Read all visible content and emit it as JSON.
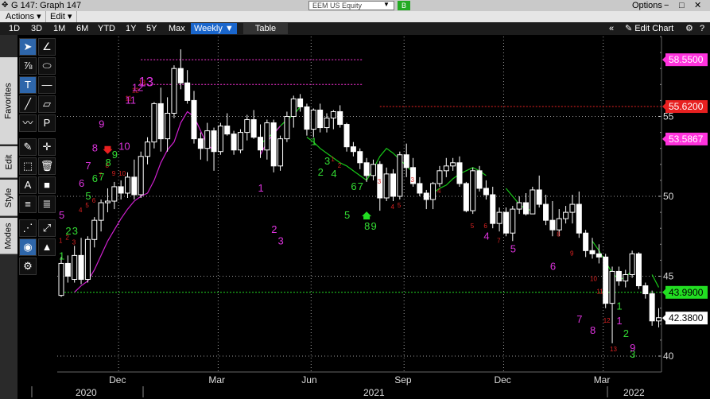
{
  "window": {
    "title": "G 147: Graph 147",
    "ticker": "EEM US Equity",
    "go": "B",
    "options": "Options",
    "controls": [
      "−",
      "□",
      "✕"
    ]
  },
  "menu": {
    "actions": "Actions ▾",
    "edit": "Edit ▾"
  },
  "toolbar": {
    "periods": [
      "1D",
      "3D",
      "1M",
      "6M",
      "YTD",
      "1Y",
      "5Y",
      "Max"
    ],
    "frequency": "Weekly ▼",
    "table": "Table",
    "edit_chart": "✎ Edit Chart",
    "collapse": "«",
    "window_controls": [
      "⚙",
      "?"
    ]
  },
  "side_tabs": [
    "Favorites",
    "Edit",
    "Style",
    "Modes"
  ],
  "tool_icons": [
    "arrow-pointer-icon",
    "draw-line-icon",
    "fibonacci-icon",
    "ellipse-icon",
    "text-box-icon",
    "horizontal-line-icon",
    "trend-line-icon",
    "rectangle-icon",
    "pen-icon",
    "price-label-icon",
    "brush-icon",
    "crosshair-icon",
    "select-region-icon",
    "trash-icon",
    "text-icon",
    "color-swatch-icon",
    "line-style-icon",
    "line-width-icon",
    "ruler-icon",
    "measure-icon",
    "magnet-icon",
    "shapes-icon",
    "settings-icon"
  ],
  "colors": {
    "background": "#000000",
    "up_candle": "#ffffff",
    "down_candle": "#ffffff",
    "ma_green": "#18c818",
    "ma_magenta": "#d020d0",
    "count_green": "#33dd33",
    "count_magenta": "#dd33dd",
    "count_red": "#dd2222",
    "grid": "#9a9a9a",
    "label_magenta": "#ff33dd",
    "label_red": "#e82020",
    "label_green": "#22dd22"
  },
  "chart_data": {
    "type": "candlestick",
    "frequency": "Weekly",
    "ylim": [
      39.5,
      60.5
    ],
    "yticks": [
      40,
      45,
      50,
      55
    ],
    "xticks": [
      "Dec",
      "Mar",
      "Jun",
      "Sep",
      "Dec",
      "Mar"
    ],
    "years": [
      "2020",
      "2021",
      "2022"
    ],
    "price_labels": [
      {
        "value": 58.55,
        "text": "58.5500",
        "color": "magenta"
      },
      {
        "value": 55.62,
        "text": "55.6200",
        "color": "red"
      },
      {
        "value": 53.5867,
        "text": "53.5867",
        "color": "magenta"
      },
      {
        "value": 43.99,
        "text": "43.9900",
        "color": "green"
      },
      {
        "value": 42.38,
        "text": "42.3800",
        "color": "white"
      }
    ],
    "reference_lines": [
      {
        "value": 58.55,
        "color": "magenta",
        "start_week": 12
      },
      {
        "value": 57.0,
        "color": "magenta",
        "start_week": 12
      },
      {
        "value": 55.62,
        "color": "red",
        "start_week": 48
      },
      {
        "value": 43.99,
        "color": "green",
        "start_week": 0
      }
    ],
    "candles": [
      [
        43.8,
        46.2,
        43.7,
        45.8
      ],
      [
        45.8,
        46.3,
        44.6,
        45.0
      ],
      [
        44.8,
        46.9,
        44.6,
        46.3
      ],
      [
        46.3,
        47.4,
        44.5,
        44.8
      ],
      [
        44.8,
        47.5,
        44.6,
        47.3
      ],
      [
        47.3,
        48.7,
        46.8,
        48.5
      ],
      [
        48.5,
        49.8,
        47.8,
        49.6
      ],
      [
        49.6,
        50.5,
        49.0,
        49.7
      ],
      [
        49.7,
        50.9,
        49.2,
        50.6
      ],
      [
        50.6,
        51.0,
        49.8,
        50.2
      ],
      [
        50.2,
        51.5,
        49.9,
        51.2
      ],
      [
        51.2,
        52.3,
        49.8,
        50.1
      ],
      [
        50.1,
        52.8,
        49.9,
        52.5
      ],
      [
        52.5,
        53.7,
        52.0,
        53.4
      ],
      [
        53.4,
        55.9,
        53.0,
        55.8
      ],
      [
        55.8,
        56.8,
        52.8,
        53.6
      ],
      [
        53.6,
        56.2,
        52.8,
        55.2
      ],
      [
        55.2,
        58.2,
        54.9,
        58.0
      ],
      [
        58.0,
        59.2,
        56.7,
        57.1
      ],
      [
        57.1,
        57.9,
        55.8,
        56.0
      ],
      [
        56.0,
        56.6,
        53.3,
        53.6
      ],
      [
        53.6,
        54.0,
        52.3,
        53.0
      ],
      [
        53.0,
        54.6,
        52.2,
        54.1
      ],
      [
        54.1,
        54.3,
        51.6,
        52.8
      ],
      [
        52.8,
        54.6,
        52.6,
        54.4
      ],
      [
        54.4,
        55.2,
        53.8,
        53.9
      ],
      [
        53.9,
        54.1,
        52.6,
        52.9
      ],
      [
        52.9,
        54.2,
        52.7,
        54.0
      ],
      [
        54.0,
        55.1,
        53.5,
        54.8
      ],
      [
        54.8,
        55.4,
        53.6,
        53.7
      ],
      [
        53.7,
        54.5,
        52.4,
        52.9
      ],
      [
        52.9,
        54.8,
        52.3,
        54.6
      ],
      [
        54.6,
        54.8,
        51.5,
        51.9
      ],
      [
        51.9,
        53.8,
        51.6,
        53.6
      ],
      [
        53.6,
        55.3,
        53.4,
        55.0
      ],
      [
        55.0,
        56.3,
        54.3,
        56.1
      ],
      [
        56.1,
        56.4,
        55.3,
        55.6
      ],
      [
        55.6,
        55.8,
        53.8,
        54.2
      ],
      [
        54.2,
        55.5,
        53.7,
        55.4
      ],
      [
        55.4,
        55.8,
        54.0,
        54.3
      ],
      [
        54.3,
        55.2,
        54.0,
        54.9
      ],
      [
        54.9,
        55.4,
        54.2,
        55.3
      ],
      [
        55.3,
        55.7,
        54.3,
        54.5
      ],
      [
        54.5,
        54.6,
        52.8,
        53.1
      ],
      [
        53.1,
        53.4,
        52.5,
        52.8
      ],
      [
        52.8,
        53.0,
        51.7,
        52.1
      ],
      [
        52.1,
        52.4,
        50.9,
        51.3
      ],
      [
        51.3,
        52.3,
        51.0,
        52.0
      ],
      [
        52.0,
        52.2,
        49.1,
        49.9
      ],
      [
        49.9,
        51.8,
        49.7,
        51.4
      ],
      [
        51.4,
        51.7,
        49.7,
        50.0
      ],
      [
        50.0,
        52.8,
        49.8,
        52.6
      ],
      [
        52.6,
        53.3,
        51.2,
        51.8
      ],
      [
        51.8,
        52.4,
        50.6,
        50.8
      ],
      [
        50.8,
        51.2,
        50.0,
        50.2
      ],
      [
        50.2,
        50.4,
        49.2,
        49.8
      ],
      [
        49.8,
        50.9,
        49.2,
        50.8
      ],
      [
        50.8,
        51.9,
        50.6,
        51.6
      ],
      [
        51.6,
        52.4,
        51.2,
        51.9
      ],
      [
        51.9,
        52.4,
        51.6,
        52.1
      ],
      [
        52.1,
        52.5,
        50.6,
        50.8
      ],
      [
        50.8,
        50.9,
        49.0,
        49.1
      ],
      [
        49.1,
        51.8,
        48.9,
        51.6
      ],
      [
        51.6,
        51.9,
        50.3,
        50.5
      ],
      [
        50.5,
        51.0,
        49.8,
        50.1
      ],
      [
        50.1,
        50.6,
        48.0,
        48.3
      ],
      [
        48.3,
        49.3,
        47.8,
        49.0
      ],
      [
        49.0,
        49.3,
        47.5,
        47.7
      ],
      [
        47.7,
        49.4,
        47.2,
        49.2
      ],
      [
        49.2,
        50.0,
        48.9,
        49.6
      ],
      [
        49.6,
        50.2,
        48.8,
        48.9
      ],
      [
        48.9,
        50.6,
        48.9,
        50.4
      ],
      [
        50.4,
        51.3,
        49.3,
        49.5
      ],
      [
        49.5,
        50.1,
        48.2,
        48.5
      ],
      [
        48.5,
        49.7,
        47.5,
        47.9
      ],
      [
        47.9,
        49.2,
        47.5,
        48.6
      ],
      [
        48.6,
        49.4,
        48.3,
        49.0
      ],
      [
        49.0,
        50.1,
        48.3,
        49.5
      ],
      [
        49.5,
        50.3,
        47.4,
        47.7
      ],
      [
        47.7,
        47.9,
        46.2,
        46.6
      ],
      [
        46.6,
        47.4,
        46.1,
        46.4
      ],
      [
        46.4,
        47.0,
        45.8,
        46.2
      ],
      [
        46.2,
        46.4,
        43.0,
        43.3
      ],
      [
        43.3,
        45.6,
        40.8,
        45.3
      ],
      [
        45.3,
        45.6,
        44.4,
        44.7
      ],
      [
        44.7,
        45.4,
        44.3,
        45.1
      ],
      [
        45.1,
        46.6,
        44.9,
        46.4
      ],
      [
        46.4,
        46.5,
        44.2,
        44.4
      ],
      [
        44.4,
        44.6,
        43.6,
        43.9
      ],
      [
        43.9,
        44.1,
        41.9,
        42.2
      ],
      [
        42.2,
        43.0,
        41.8,
        42.4
      ]
    ],
    "ma_green_segments": [
      {
        "start": 30,
        "values": [
          53.3,
          53.6,
          54.0,
          54.4,
          54.8,
          55.1,
          55.6
        ]
      },
      {
        "start": 37,
        "values": [
          53.7,
          53.4,
          53.0,
          52.7,
          52.4,
          52.1,
          51.9,
          51.6,
          51.3,
          51.0,
          51.7,
          52.5,
          53.0,
          52.7,
          52.3,
          51.9,
          51.5
        ]
      },
      {
        "start": 56,
        "values": [
          50.2,
          50.5,
          50.7,
          51.1,
          51.4,
          51.6,
          51.8,
          51.6,
          51.3
        ]
      },
      {
        "start": 67,
        "values": [
          50.5,
          50.0,
          49.5,
          49.2,
          49.1
        ]
      },
      {
        "start": 80,
        "values": [
          47.2,
          46.6,
          45.9,
          45.2,
          44.8,
          44.9,
          45.4
        ]
      },
      {
        "start": 89,
        "values": [
          45.1,
          44.3
        ]
      }
    ],
    "ma_magenta_segments": [
      {
        "start": 2,
        "values": [
          44.0,
          44.4,
          44.7,
          45.4,
          46.3,
          47.2,
          47.9,
          48.6,
          49.2,
          49.7,
          50.0,
          50.2,
          51.0,
          52.1,
          52.9,
          53.4,
          54.6,
          55.3,
          55.0,
          54.1,
          53.2,
          52.9
        ]
      },
      {
        "start": 30,
        "values": [
          52.6,
          53.4,
          53.9,
          54.4
        ]
      }
    ],
    "counts_green": [
      {
        "w": 0,
        "v": 46.05,
        "t": "1"
      },
      {
        "w": 1,
        "v": 47.6,
        "t": "2"
      },
      {
        "w": 2,
        "v": 47.6,
        "t": "3"
      },
      {
        "w": 4,
        "v": 49.8,
        "t": "5"
      },
      {
        "w": 5,
        "v": 50.9,
        "t": "6"
      },
      {
        "w": 6,
        "v": 51.0,
        "t": "7"
      },
      {
        "w": 7,
        "v": 51.9,
        "t": "8"
      },
      {
        "w": 8,
        "v": 52.4,
        "t": "9"
      },
      {
        "w": 38,
        "v": 53.2,
        "t": "1"
      },
      {
        "w": 39,
        "v": 51.3,
        "t": "2"
      },
      {
        "w": 40,
        "v": 52.0,
        "t": "3"
      },
      {
        "w": 41,
        "v": 51.2,
        "t": "4"
      },
      {
        "w": 43,
        "v": 48.6,
        "t": "5"
      },
      {
        "w": 44,
        "v": 50.4,
        "t": "6"
      },
      {
        "w": 45,
        "v": 50.4,
        "t": "7"
      },
      {
        "w": 46,
        "v": 47.9,
        "t": "8"
      },
      {
        "w": 47,
        "v": 47.9,
        "t": "9"
      },
      {
        "w": 84,
        "v": 42.9,
        "t": "1"
      },
      {
        "w": 85,
        "v": 41.2,
        "t": "2"
      },
      {
        "w": 86,
        "v": 39.9,
        "t": "3"
      }
    ],
    "counts_magenta": [
      {
        "w": 0,
        "v": 48.6,
        "t": "5"
      },
      {
        "w": 3,
        "v": 50.6,
        "t": "6"
      },
      {
        "w": 4,
        "v": 51.7,
        "t": "7"
      },
      {
        "w": 5,
        "v": 52.8,
        "t": "8"
      },
      {
        "w": 6,
        "v": 54.3,
        "t": "9"
      },
      {
        "w": 9,
        "v": 52.9,
        "t": "10"
      },
      {
        "w": 10,
        "v": 55.8,
        "t": "11"
      },
      {
        "w": 11,
        "v": 56.6,
        "t": "12"
      },
      {
        "w": 12,
        "v": 56.9,
        "t": "13"
      },
      {
        "w": 30,
        "v": 50.3,
        "t": "1"
      },
      {
        "w": 32,
        "v": 47.7,
        "t": "2"
      },
      {
        "w": 33,
        "v": 47.0,
        "t": "3"
      },
      {
        "w": 64,
        "v": 47.3,
        "t": "4"
      },
      {
        "w": 68,
        "v": 46.5,
        "t": "5"
      },
      {
        "w": 74,
        "v": 45.4,
        "t": "6"
      },
      {
        "w": 78,
        "v": 42.1,
        "t": "7"
      },
      {
        "w": 80,
        "v": 41.4,
        "t": "8"
      },
      {
        "w": 84,
        "v": 42.0,
        "t": "1"
      },
      {
        "w": 86,
        "v": 40.3,
        "t": "9"
      }
    ],
    "counts_red": [
      {
        "w": 0,
        "v": 47.1,
        "t": "1"
      },
      {
        "w": 1,
        "v": 47.3,
        "t": "2"
      },
      {
        "w": 2,
        "v": 47.0,
        "t": "3"
      },
      {
        "w": 3,
        "v": 49.0,
        "t": "4"
      },
      {
        "w": 4,
        "v": 49.3,
        "t": "5"
      },
      {
        "w": 5,
        "v": 49.6,
        "t": "6"
      },
      {
        "w": 6,
        "v": 51.2,
        "t": "7"
      },
      {
        "w": 7,
        "v": 51.8,
        "t": "8"
      },
      {
        "w": 8,
        "v": 51.3,
        "t": "9"
      },
      {
        "w": 9,
        "v": 51.3,
        "t": "10"
      },
      {
        "w": 10,
        "v": 56.0,
        "t": "11"
      },
      {
        "w": 11,
        "v": 56.5,
        "t": "12"
      },
      {
        "w": 12,
        "v": 57.0,
        "t": "13"
      },
      {
        "w": 41,
        "v": 52.2,
        "t": "1"
      },
      {
        "w": 42,
        "v": 51.8,
        "t": "2"
      },
      {
        "w": 48,
        "v": 50.8,
        "t": "3"
      },
      {
        "w": 50,
        "v": 49.2,
        "t": "4"
      },
      {
        "w": 51,
        "v": 49.3,
        "t": "5"
      },
      {
        "w": 53,
        "v": 50.9,
        "t": "3"
      },
      {
        "w": 57,
        "v": 50.2,
        "t": "4"
      },
      {
        "w": 62,
        "v": 48.0,
        "t": "5"
      },
      {
        "w": 64,
        "v": 48.0,
        "t": "6"
      },
      {
        "w": 66,
        "v": 47.1,
        "t": "7"
      },
      {
        "w": 75,
        "v": 47.5,
        "t": "8"
      },
      {
        "w": 77,
        "v": 46.3,
        "t": "9"
      },
      {
        "w": 80,
        "v": 44.7,
        "t": "10"
      },
      {
        "w": 81,
        "v": 43.9,
        "t": "11"
      },
      {
        "w": 82,
        "v": 42.1,
        "t": "12"
      },
      {
        "w": 83,
        "v": 40.3,
        "t": "13"
      }
    ],
    "signal_arrows": [
      {
        "w": 7,
        "v": 52.9,
        "color": "red",
        "dir": "down"
      },
      {
        "w": 46,
        "v": 48.8,
        "color": "green",
        "dir": "up"
      }
    ]
  }
}
